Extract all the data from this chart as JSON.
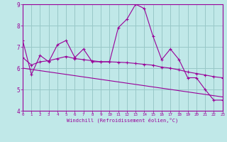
{
  "xlabel": "Windchill (Refroidissement éolien,°C)",
  "xlim": [
    0,
    23
  ],
  "ylim": [
    4,
    9
  ],
  "yticks": [
    4,
    5,
    6,
    7,
    8,
    9
  ],
  "xticks": [
    0,
    1,
    2,
    3,
    4,
    5,
    6,
    7,
    8,
    9,
    10,
    11,
    12,
    13,
    14,
    15,
    16,
    17,
    18,
    19,
    20,
    21,
    22,
    23
  ],
  "bg_color": "#c0e8e8",
  "grid_color": "#98c8c8",
  "line_color": "#990099",
  "line1_x": [
    0,
    1,
    2,
    3,
    4,
    5,
    6,
    7,
    8,
    9,
    10,
    11,
    12,
    13,
    14,
    15,
    16,
    17,
    18,
    19,
    20,
    21,
    22,
    23
  ],
  "line1_y": [
    7.3,
    5.7,
    6.6,
    6.3,
    7.1,
    7.3,
    6.5,
    6.9,
    6.3,
    6.3,
    6.3,
    7.9,
    8.3,
    9.0,
    8.8,
    7.5,
    6.4,
    6.9,
    6.4,
    5.55,
    5.55,
    5.0,
    4.5,
    4.5
  ],
  "line2_x": [
    0,
    1,
    2,
    3,
    4,
    5,
    6,
    7,
    8,
    9,
    10,
    11,
    12,
    13,
    14,
    15,
    16,
    17,
    18,
    19,
    20,
    21,
    22,
    23
  ],
  "line2_y": [
    6.5,
    6.15,
    6.3,
    6.35,
    6.45,
    6.55,
    6.45,
    6.4,
    6.35,
    6.3,
    6.3,
    6.28,
    6.26,
    6.22,
    6.18,
    6.14,
    6.05,
    6.0,
    5.92,
    5.82,
    5.75,
    5.68,
    5.6,
    5.55
  ],
  "line3_x": [
    0,
    23
  ],
  "line3_y": [
    6.0,
    4.65
  ],
  "marker": "+"
}
